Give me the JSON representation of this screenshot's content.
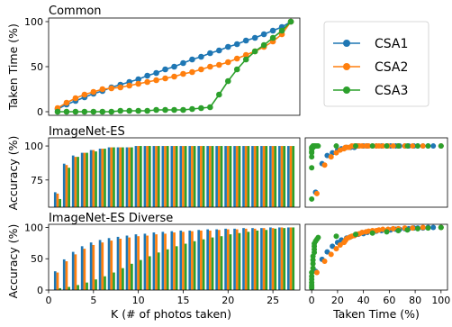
{
  "colors": {
    "CSA1": "#1f77b4",
    "CSA2": "#ff7f0e",
    "CSA3": "#2ca02c"
  },
  "chart_data": [
    {
      "id": "common",
      "type": "line",
      "title": "Common",
      "xlabel": "",
      "ylabel": "Taken Time (%)",
      "xlim": [
        0,
        28
      ],
      "ylim": [
        -4,
        104
      ],
      "yticks": [
        0,
        50,
        100
      ],
      "x": [
        1,
        2,
        3,
        4,
        5,
        6,
        7,
        8,
        9,
        10,
        11,
        12,
        13,
        14,
        15,
        16,
        17,
        18,
        19,
        20,
        21,
        22,
        23,
        24,
        25,
        26,
        27
      ],
      "series": [
        {
          "name": "CSA1",
          "values": [
            3,
            8,
            12,
            16,
            20,
            23,
            27,
            30,
            33,
            36,
            40,
            43,
            47,
            50,
            54,
            58,
            61,
            65,
            68,
            72,
            75,
            79,
            82,
            86,
            90,
            94,
            100
          ]
        },
        {
          "name": "CSA2",
          "values": [
            4,
            10,
            15,
            19,
            22,
            25,
            26,
            27,
            29,
            31,
            33,
            35,
            37,
            39,
            42,
            44,
            47,
            50,
            52,
            55,
            59,
            63,
            67,
            72,
            78,
            86,
            100
          ]
        },
        {
          "name": "CSA3",
          "values": [
            0,
            0,
            0,
            0,
            0,
            0,
            0,
            1,
            1,
            1,
            1,
            2,
            2,
            2,
            2,
            3,
            4,
            5,
            19,
            34,
            47,
            58,
            67,
            74,
            82,
            90,
            100
          ]
        }
      ],
      "legend": {
        "placement": "outside-right",
        "entries": [
          "CSA1",
          "CSA2",
          "CSA3"
        ]
      }
    },
    {
      "id": "imagenet-es-bar",
      "type": "bar",
      "title": "ImageNet-ES",
      "xlabel": "",
      "ylabel": "Accuracy (%)",
      "xlim": [
        0,
        28
      ],
      "ylim": [
        55,
        106
      ],
      "yticks": [
        75,
        100
      ],
      "categories": [
        1,
        2,
        3,
        4,
        5,
        6,
        7,
        8,
        9,
        10,
        11,
        12,
        13,
        14,
        15,
        16,
        17,
        18,
        19,
        20,
        21,
        22,
        23,
        24,
        25,
        26,
        27
      ],
      "series": [
        {
          "name": "CSA1",
          "values": [
            66,
            87,
            93,
            95,
            97,
            98,
            99,
            99,
            99,
            100,
            100,
            100,
            100,
            100,
            100,
            100,
            100,
            100,
            100,
            100,
            100,
            100,
            100,
            100,
            100,
            100,
            100
          ]
        },
        {
          "name": "CSA2",
          "values": [
            65,
            86,
            92,
            95,
            97,
            98,
            99,
            99,
            99,
            100,
            100,
            100,
            100,
            100,
            100,
            100,
            100,
            100,
            100,
            100,
            100,
            100,
            100,
            100,
            100,
            100,
            100
          ]
        },
        {
          "name": "CSA3",
          "values": [
            61,
            84,
            92,
            95,
            96,
            98,
            99,
            99,
            99,
            100,
            100,
            100,
            100,
            100,
            100,
            100,
            100,
            100,
            100,
            100,
            100,
            100,
            100,
            100,
            100,
            100,
            100
          ]
        }
      ]
    },
    {
      "id": "imagenet-es-scatter",
      "type": "scatter",
      "title": "",
      "xlabel": "",
      "ylabel": "",
      "xlim": [
        -5,
        105
      ],
      "ylim": [
        55,
        106
      ],
      "series": [
        {
          "name": "CSA1",
          "x": [
            3,
            8,
            12,
            16,
            20,
            23,
            27,
            30,
            33,
            36,
            40,
            43,
            47,
            50,
            54,
            58,
            61,
            65,
            68,
            72,
            75,
            79,
            82,
            86,
            90,
            94,
            100
          ],
          "y": [
            66,
            87,
            93,
            95,
            97,
            98,
            99,
            99,
            99,
            100,
            100,
            100,
            100,
            100,
            100,
            100,
            100,
            100,
            100,
            100,
            100,
            100,
            100,
            100,
            100,
            100,
            100
          ]
        },
        {
          "name": "CSA2",
          "x": [
            4,
            10,
            15,
            19,
            22,
            25,
            26,
            27,
            29,
            31,
            33,
            35,
            37,
            39,
            42,
            44,
            47,
            50,
            52,
            55,
            59,
            63,
            67,
            72,
            78,
            86,
            100
          ],
          "y": [
            65,
            86,
            92,
            95,
            97,
            98,
            99,
            99,
            99,
            100,
            100,
            100,
            100,
            100,
            100,
            100,
            100,
            100,
            100,
            100,
            100,
            100,
            100,
            100,
            100,
            100,
            100
          ]
        },
        {
          "name": "CSA3",
          "x": [
            0,
            0,
            0,
            0,
            0,
            0,
            0,
            1,
            1,
            1,
            1,
            2,
            2,
            2,
            2,
            3,
            4,
            5,
            19,
            34,
            47,
            58,
            67,
            74,
            82,
            90,
            100
          ],
          "y": [
            61,
            84,
            92,
            95,
            96,
            98,
            99,
            99,
            99,
            100,
            100,
            100,
            100,
            100,
            100,
            100,
            100,
            100,
            100,
            100,
            100,
            100,
            100,
            100,
            100,
            100,
            100
          ]
        }
      ]
    },
    {
      "id": "imagenet-es-diverse-bar",
      "type": "bar",
      "title": "ImageNet-ES Diverse",
      "xlabel": "K (# of photos taken)",
      "ylabel": "Accuracy (%)",
      "xlim": [
        0,
        28
      ],
      "ylim": [
        0,
        105
      ],
      "yticks": [
        0,
        50,
        100
      ],
      "xticks": [
        0,
        5,
        10,
        15,
        20,
        25
      ],
      "categories": [
        1,
        2,
        3,
        4,
        5,
        6,
        7,
        8,
        9,
        10,
        11,
        12,
        13,
        14,
        15,
        16,
        17,
        18,
        19,
        20,
        21,
        22,
        23,
        24,
        25,
        26,
        27
      ],
      "series": [
        {
          "name": "CSA1",
          "values": [
            30,
            49,
            61,
            70,
            76,
            80,
            83,
            85,
            87,
            89,
            90,
            92,
            93,
            94,
            95,
            95,
            96,
            97,
            97,
            98,
            98,
            99,
            99,
            99,
            100,
            100,
            100
          ]
        },
        {
          "name": "CSA2",
          "values": [
            28,
            46,
            57,
            66,
            72,
            76,
            79,
            82,
            84,
            86,
            87,
            89,
            90,
            92,
            93,
            94,
            95,
            95,
            96,
            97,
            97,
            98,
            98,
            99,
            99,
            100,
            100
          ]
        },
        {
          "name": "CSA3",
          "values": [
            3,
            5,
            8,
            12,
            17,
            22,
            28,
            35,
            42,
            48,
            54,
            60,
            65,
            70,
            74,
            78,
            81,
            84,
            86,
            89,
            91,
            93,
            95,
            96,
            98,
            99,
            100
          ]
        }
      ]
    },
    {
      "id": "imagenet-es-diverse-scatter",
      "type": "scatter",
      "title": "",
      "xlabel": "Taken Time (%)",
      "ylabel": "",
      "xlim": [
        -5,
        105
      ],
      "ylim": [
        0,
        105
      ],
      "xticks": [
        0,
        20,
        40,
        60,
        80,
        100
      ],
      "series": [
        {
          "name": "CSA1",
          "x": [
            3,
            8,
            12,
            16,
            20,
            23,
            27,
            30,
            33,
            36,
            40,
            43,
            47,
            50,
            54,
            58,
            61,
            65,
            68,
            72,
            75,
            79,
            82,
            86,
            90,
            94,
            100
          ],
          "y": [
            30,
            49,
            61,
            70,
            76,
            80,
            83,
            85,
            87,
            89,
            90,
            92,
            93,
            94,
            95,
            95,
            96,
            97,
            97,
            98,
            98,
            99,
            99,
            99,
            100,
            100,
            100
          ]
        },
        {
          "name": "CSA2",
          "x": [
            4,
            10,
            15,
            19,
            22,
            25,
            26,
            27,
            29,
            31,
            33,
            35,
            37,
            39,
            42,
            44,
            47,
            50,
            52,
            55,
            59,
            63,
            67,
            72,
            78,
            86,
            100
          ],
          "y": [
            28,
            46,
            57,
            66,
            72,
            76,
            79,
            82,
            84,
            86,
            87,
            89,
            90,
            92,
            93,
            94,
            95,
            95,
            96,
            97,
            97,
            98,
            98,
            99,
            99,
            100,
            100
          ]
        },
        {
          "name": "CSA3",
          "x": [
            0,
            0,
            0,
            0,
            0,
            0,
            0,
            1,
            1,
            1,
            1,
            2,
            2,
            2,
            2,
            3,
            4,
            5,
            19,
            34,
            47,
            58,
            67,
            74,
            82,
            90,
            100
          ],
          "y": [
            3,
            5,
            8,
            12,
            17,
            22,
            28,
            35,
            42,
            48,
            54,
            60,
            65,
            70,
            74,
            78,
            81,
            84,
            86,
            89,
            91,
            93,
            95,
            96,
            98,
            99,
            100
          ]
        }
      ]
    }
  ]
}
